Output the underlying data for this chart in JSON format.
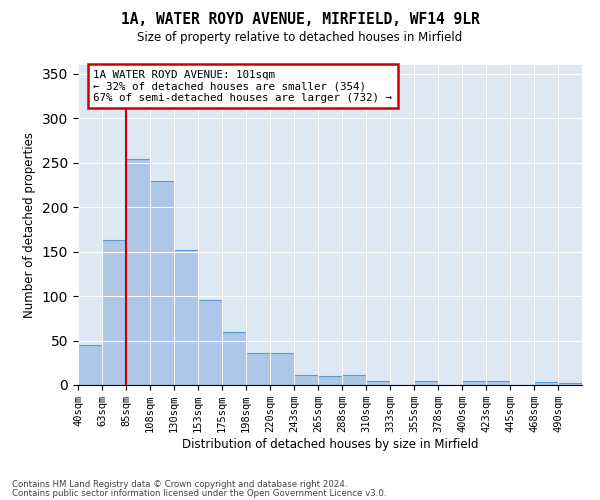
{
  "title1": "1A, WATER ROYD AVENUE, MIRFIELD, WF14 9LR",
  "title2": "Size of property relative to detached houses in Mirfield",
  "xlabel": "Distribution of detached houses by size in Mirfield",
  "ylabel": "Number of detached properties",
  "bar_labels": [
    "40sqm",
    "63sqm",
    "85sqm",
    "108sqm",
    "130sqm",
    "153sqm",
    "175sqm",
    "198sqm",
    "220sqm",
    "243sqm",
    "265sqm",
    "288sqm",
    "310sqm",
    "333sqm",
    "355sqm",
    "378sqm",
    "400sqm",
    "423sqm",
    "445sqm",
    "468sqm",
    "490sqm"
  ],
  "bar_values": [
    45,
    163,
    254,
    229,
    152,
    96,
    60,
    36,
    36,
    11,
    10,
    11,
    5,
    0,
    4,
    0,
    4,
    5,
    0,
    3,
    2
  ],
  "bar_color": "#aec6e8",
  "bar_edge_color": "#5b9bd5",
  "property_line_x": 2,
  "annotation_text": "1A WATER ROYD AVENUE: 101sqm\n← 32% of detached houses are smaller (354)\n67% of semi-detached houses are larger (732) →",
  "annotation_box_color": "#ffffff",
  "annotation_edge_color": "#cc0000",
  "vline_color": "#cc0000",
  "footnote1": "Contains HM Land Registry data © Crown copyright and database right 2024.",
  "footnote2": "Contains public sector information licensed under the Open Government Licence v3.0.",
  "ylim": [
    0,
    360
  ],
  "bg_color": "#dde8f5",
  "fig_bg_color": "#ffffff",
  "num_bars": 21,
  "yticks": [
    0,
    50,
    100,
    150,
    200,
    250,
    300,
    350
  ]
}
